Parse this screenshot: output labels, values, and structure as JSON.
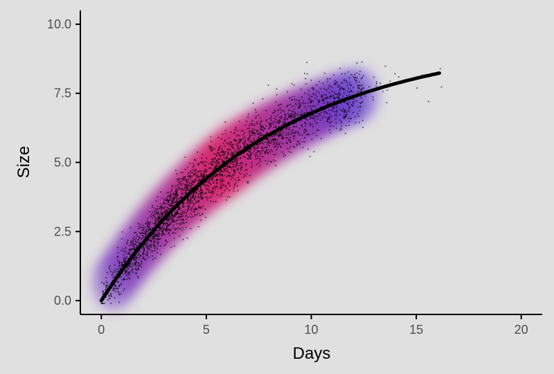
{
  "chart_data": {
    "type": "scatter",
    "title": "",
    "xlabel": "Days",
    "ylabel": "Size",
    "xlim": [
      -1,
      21
    ],
    "ylim": [
      -0.5,
      10.5
    ],
    "x_ticks": [
      0,
      5,
      10,
      15,
      20
    ],
    "x_tick_labels": [
      "0",
      "5",
      "10",
      "15",
      "20"
    ],
    "y_ticks": [
      0,
      2.5,
      5,
      7.5,
      10
    ],
    "y_tick_labels": [
      "0.0",
      "2.5",
      "5.0",
      "7.5",
      "10.0"
    ],
    "grid": false,
    "legend": "none",
    "points": {
      "n": 3000,
      "x_range": [
        0,
        16.2
      ],
      "model": "size = 9.5 * (1 - exp(-0.125 * days))",
      "noise_sd": 0.5,
      "color": "#000000"
    },
    "density_overlay": {
      "type": "2d-density",
      "color_low": "#0000ff",
      "color_high": "#ff0000"
    },
    "fit_line": {
      "model": "size = 9.5 * (1 - exp(-0.125 * days))",
      "x_range": [
        0,
        16.1
      ],
      "color": "#000000"
    },
    "colors": {
      "background": "#e0e0e0",
      "axis": "#000000",
      "tick_label": "#4d4d4d"
    }
  }
}
